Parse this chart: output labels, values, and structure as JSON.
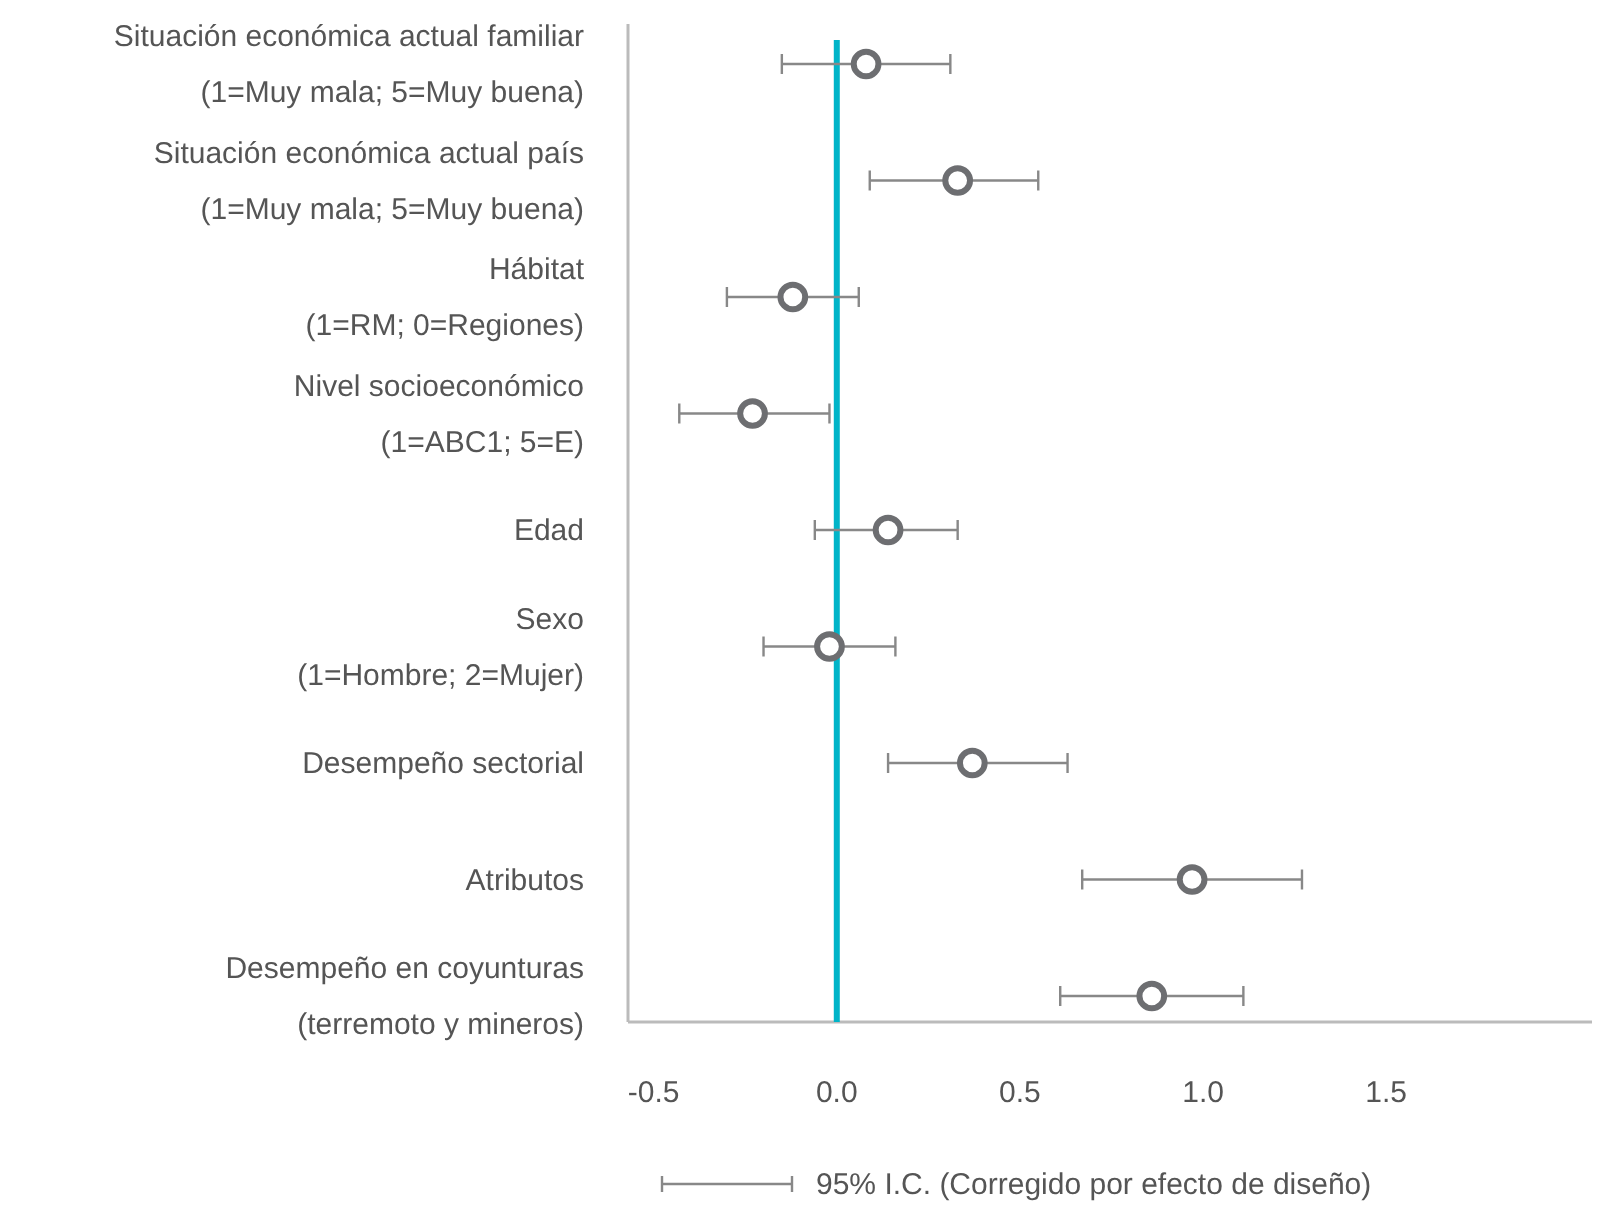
{
  "chart_data": {
    "type": "scatter",
    "orientation": "horizontal",
    "categories": [
      "Situación económica actual familiar\n(1=Muy mala; 5=Muy buena)",
      "Situación económica actual país\n(1=Muy mala; 5=Muy buena)",
      "Hábitat\n(1=RM; 0=Regiones)",
      "Nivel socioeconómico\n(1=ABC1; 5=E)",
      "Edad",
      "Sexo\n(1=Hombre; 2=Mujer)",
      "Desempeño sectorial",
      "Atributos",
      "Desempeño en coyunturas\n(terremoto y mineros)"
    ],
    "series": [
      {
        "color": "#6d6e71",
        "values": [
          0.08,
          0.33,
          -0.12,
          -0.23,
          0.14,
          -0.02,
          0.37,
          0.97,
          0.86
        ],
        "errors": [
          [
            -0.15,
            0.31
          ],
          [
            0.09,
            0.55
          ],
          [
            -0.3,
            0.06
          ],
          [
            -0.43,
            -0.02
          ],
          [
            -0.06,
            0.33
          ],
          [
            -0.2,
            0.16
          ],
          [
            0.14,
            0.63
          ],
          [
            0.67,
            1.27
          ],
          [
            0.61,
            1.11
          ]
        ]
      }
    ],
    "xlim": [
      -0.57,
      2.1
    ],
    "xticks": [
      -0.5,
      {
        "value": 0,
        "label": "0.0"
      },
      0.5,
      {
        "value": 1,
        "label": "1.0"
      },
      1.5
    ],
    "ref_lines": [
      {
        "axis": "x",
        "value": 0,
        "color": "#00b4c8"
      }
    ],
    "marker": "circle",
    "grid": false,
    "annotations": [
      "95% I.C. (Corregido por efecto de diseño)"
    ]
  }
}
